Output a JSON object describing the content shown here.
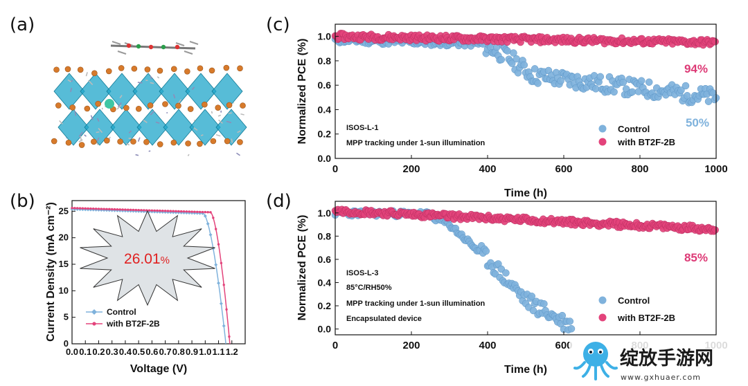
{
  "panels": {
    "a": {
      "letter": "(a)"
    },
    "b": {
      "letter": "(b)"
    },
    "c": {
      "letter": "(c)"
    },
    "d": {
      "letter": "(d)"
    }
  },
  "colors": {
    "control": "#7fb2dc",
    "bt2f": "#e3437b",
    "bt2f_text": "#dd3a76",
    "control_text": "#7fb2dc",
    "pce": "#e02020",
    "starburst": "#dfe3e6"
  },
  "starburst_text": "26.01",
  "starburst_unit": "%",
  "chart_data": [
    {
      "id": "b",
      "type": "line",
      "xlabel": "Voltage (V)",
      "ylabel": "Current Density (mA cm⁻²)",
      "xlim": [
        0.0,
        1.3
      ],
      "ylim": [
        0,
        27
      ],
      "xticks": [
        "0.0",
        "0.1",
        "0.2",
        "0.3",
        "0.4",
        "0.5",
        "0.6",
        "0.7",
        "0.8",
        "0.9",
        "1.0",
        "1.1",
        "1.2"
      ],
      "yticks": [
        "0",
        "5",
        "10",
        "15",
        "20",
        "25"
      ],
      "legend": "lower-left",
      "series": [
        {
          "name": "Control",
          "jsc": 25.4,
          "voc": 1.155,
          "knee": 0.985
        },
        {
          "name": "with BT2F-2B",
          "jsc": 25.6,
          "voc": 1.185,
          "knee": 1.04
        }
      ]
    },
    {
      "id": "c",
      "type": "scatter",
      "xlabel": "Time (h)",
      "ylabel": "Normalized PCE (%)",
      "xlim": [
        0,
        1000
      ],
      "ylim": [
        0.0,
        1.1
      ],
      "xticks": [
        "0",
        "200",
        "400",
        "600",
        "800",
        "1000"
      ],
      "yticks": [
        "0.0",
        "0.2",
        "0.4",
        "0.6",
        "0.8",
        "1.0"
      ],
      "legend": "lower-right",
      "annotations": [
        "ISOS-L-1",
        "MPP tracking under 1-sun illumination"
      ],
      "series": [
        {
          "name": "Control",
          "final": "50%",
          "profile": [
            [
              0,
              0.97
            ],
            [
              380,
              0.94
            ],
            [
              440,
              0.86
            ],
            [
              520,
              0.68
            ],
            [
              700,
              0.61
            ],
            [
              1000,
              0.5
            ]
          ]
        },
        {
          "name": "with BT2F-2B",
          "final": "94%",
          "profile": [
            [
              0,
              1.0
            ],
            [
              1000,
              0.95
            ]
          ]
        }
      ]
    },
    {
      "id": "d",
      "type": "scatter",
      "xlabel": "Time (h)",
      "ylabel": "Normalized PCE (%)",
      "xlim": [
        0,
        1000
      ],
      "ylim": [
        -0.05,
        1.1
      ],
      "xticks": [
        "0",
        "200",
        "400",
        "600",
        "800",
        "1000"
      ],
      "yticks": [
        "0.0",
        "0.2",
        "0.4",
        "0.6",
        "0.8",
        "1.0"
      ],
      "legend": "lower-right",
      "annotations": [
        "ISOS-L-3",
        "85°C/RH50%",
        "MPP tracking under 1-sun illumination",
        "Encapsulated device"
      ],
      "series": [
        {
          "name": "Control",
          "profile": [
            [
              0,
              1.0
            ],
            [
              240,
              0.99
            ],
            [
              300,
              0.9
            ],
            [
              400,
              0.6
            ],
            [
              500,
              0.25
            ],
            [
              620,
              0.02
            ]
          ]
        },
        {
          "name": "with BT2F-2B",
          "final": "85%",
          "profile": [
            [
              0,
              1.02
            ],
            [
              1000,
              0.86
            ]
          ]
        }
      ]
    }
  ],
  "watermark": {
    "title": "绽放手游网",
    "url": "www.gxhuaer.com"
  }
}
